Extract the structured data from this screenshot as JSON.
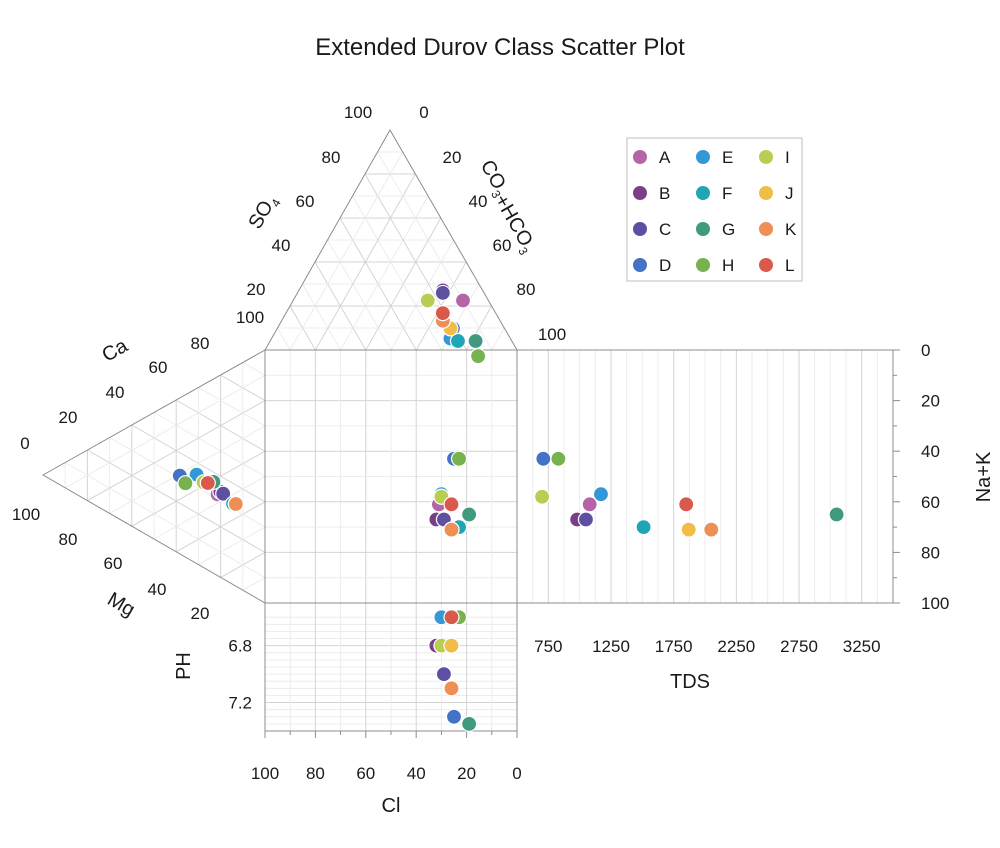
{
  "chart_data": {
    "type": "scatter",
    "title": "Extended Durov Class Scatter Plot",
    "legend_position": "top-right",
    "legend_order": [
      "A",
      "B",
      "C",
      "D",
      "E",
      "F",
      "G",
      "H",
      "I",
      "J",
      "K",
      "L"
    ],
    "series": [
      {
        "name": "A",
        "color": "#b565a7",
        "mg": 32,
        "ca": 6,
        "na_k": 61,
        "co3_hco3": 75,
        "so4": 16,
        "cl": 31,
        "tds": 1080,
        "ph": null
      },
      {
        "name": "B",
        "color": "#7b3f87",
        "mg": 30,
        "ca": 4,
        "na_k": 67,
        "co3_hco3": 67,
        "so4": 20,
        "cl": 32,
        "tds": 980,
        "ph": 6.8
      },
      {
        "name": "C",
        "color": "#5e4fa2",
        "mg": 31,
        "ca": 2,
        "na_k": 67,
        "co3_hco3": 67,
        "so4": 19,
        "cl": 29,
        "tds": 1050,
        "ph": 7.0
      },
      {
        "name": "D",
        "color": "#4472c4",
        "mg": 24,
        "ca": 33,
        "na_k": 43,
        "co3_hco3": 71,
        "so4": 5,
        "cl": 25,
        "tds": 710,
        "ph": 7.3
      },
      {
        "name": "E",
        "color": "#3299d6",
        "mg": 22,
        "ca": 21,
        "na_k": 57,
        "co3_hco3": 70,
        "so4": 1,
        "cl": 30,
        "tds": 1170,
        "ph": 6.6
      },
      {
        "name": "F",
        "color": "#20a5b5",
        "mg": 36,
        "ca": -5,
        "na_k": 70,
        "co3_hco3": 73,
        "so4": 0,
        "cl": 23,
        "tds": 1510,
        "ph": 6.6
      },
      {
        "name": "G",
        "color": "#3f9a80",
        "mg": 25,
        "ca": 9,
        "na_k": 65,
        "co3_hco3": 80,
        "so4": 0,
        "cl": 19,
        "tds": 3050,
        "ph": 7.35
      },
      {
        "name": "H",
        "color": "#76b24e",
        "mg": 28,
        "ca": 29,
        "na_k": 43,
        "co3_hco3": 81,
        "so4": -6,
        "cl": 23,
        "tds": 830,
        "ph": 6.6
      },
      {
        "name": "I",
        "color": "#b9cd52",
        "mg": 26,
        "ca": 16,
        "na_k": 58,
        "co3_hco3": 61,
        "so4": 16,
        "cl": 30,
        "tds": 700,
        "ph": 6.8
      },
      {
        "name": "J",
        "color": "#efbd48",
        "mg": 36,
        "ca": -7,
        "na_k": 71,
        "co3_hco3": 70,
        "so4": 5,
        "cl": 26,
        "tds": 1870,
        "ph": 6.8
      },
      {
        "name": "K",
        "color": "#ee8f55",
        "mg": 36,
        "ca": -7,
        "na_k": 71,
        "co3_hco3": 67,
        "so4": 8,
        "cl": 26,
        "tds": 2050,
        "ph": 7.1
      },
      {
        "name": "L",
        "color": "#d9594d",
        "mg": 26,
        "ca": 13,
        "na_k": 61,
        "co3_hco3": 67,
        "so4": 11,
        "cl": 26,
        "tds": 1850,
        "ph": 6.6
      }
    ],
    "ternary_cation": {
      "axes": [
        "Ca",
        "Mg"
      ],
      "ca_ticks": [
        "0",
        "20",
        "40",
        "60",
        "80"
      ],
      "mg_ticks": [
        "100",
        "80",
        "60",
        "40",
        "20"
      ]
    },
    "ternary_anion": {
      "axes": [
        "SO4",
        "CO3+HCO3"
      ],
      "so4_ticks": [
        "100",
        "80",
        "60",
        "40",
        "20",
        "100"
      ],
      "co3_ticks": [
        "0",
        "20",
        "40",
        "60",
        "80",
        "100"
      ]
    },
    "square": {
      "x_axis": {
        "label": "Cl",
        "ticks": [
          "100",
          "80",
          "60",
          "40",
          "20",
          "0"
        ]
      },
      "y_axis": {
        "label": "Na+K",
        "ticks": [
          "0",
          "20",
          "40",
          "60",
          "80",
          "100"
        ]
      }
    },
    "tds": {
      "label": "TDS",
      "ticks": [
        "750",
        "1250",
        "1750",
        "2250",
        "2750",
        "3250"
      ],
      "xlim": [
        500,
        3500
      ]
    },
    "ph": {
      "label": "PH",
      "ticks": [
        "6.8",
        "7.2"
      ],
      "ylim": [
        6.5,
        7.4
      ]
    }
  }
}
